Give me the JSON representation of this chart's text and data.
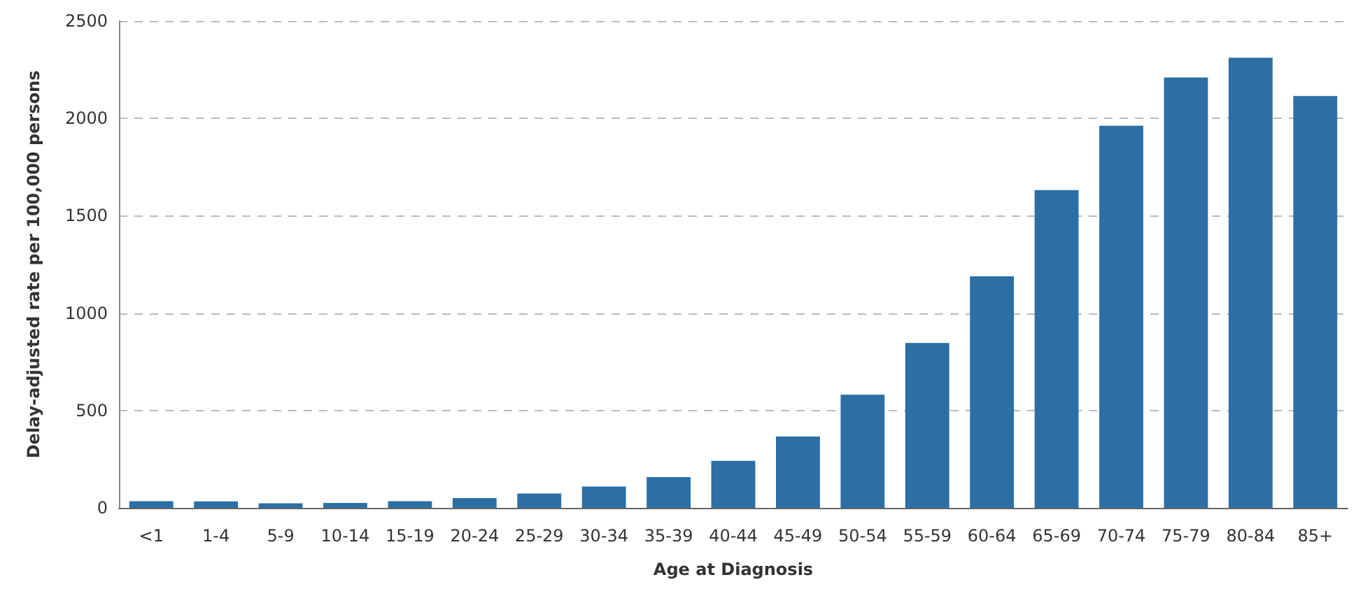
{
  "chart_data": {
    "type": "bar",
    "xlabel": "Age at Diagnosis",
    "ylabel": "Delay-adjusted rate per 100,000 persons",
    "categories": [
      "<1",
      "1-4",
      "5-9",
      "10-14",
      "15-19",
      "20-24",
      "25-29",
      "30-34",
      "35-39",
      "40-44",
      "45-49",
      "50-54",
      "55-59",
      "60-64",
      "65-69",
      "70-74",
      "75-79",
      "80-84",
      "85+"
    ],
    "values": [
      34,
      33,
      23,
      25,
      34,
      50,
      74,
      110,
      158,
      242,
      366,
      581,
      847,
      1189,
      1632,
      1962,
      2210,
      2311,
      2115
    ],
    "color": "#2b6fa5",
    "ylim": [
      0,
      2500
    ],
    "yticks": [
      0,
      500,
      1000,
      1500,
      2000,
      2500
    ],
    "grid": "y"
  }
}
